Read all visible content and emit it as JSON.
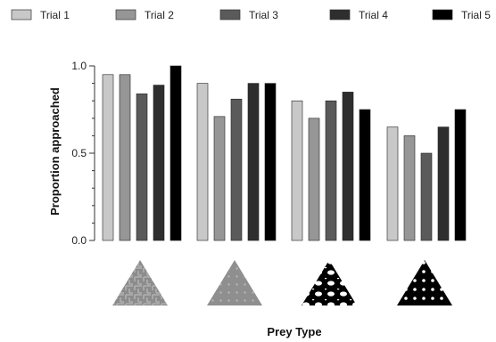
{
  "chart_data": {
    "type": "bar",
    "xlabel": "Prey Type",
    "ylabel": "Proportion approached",
    "ylim": [
      0,
      1.0
    ],
    "yticks": [
      0.0,
      0.5,
      1.0
    ],
    "ytick_labels": [
      "0.0",
      "0.5",
      "1.0"
    ],
    "grid": false,
    "legend_position": "top",
    "categories": [
      "",
      "",
      "",
      ""
    ],
    "category_images": [
      "grey-maze-pattern-triangle",
      "grey-dot-pattern-triangle",
      "black-white-blob-pattern-triangle",
      "black-white-dot-pattern-triangle"
    ],
    "series": [
      {
        "name": "Trial 1",
        "color": "#c8c8c8",
        "values": [
          0.95,
          0.9,
          0.8,
          0.65
        ]
      },
      {
        "name": "Trial 2",
        "color": "#969696",
        "values": [
          0.95,
          0.71,
          0.7,
          0.6
        ]
      },
      {
        "name": "Trial 3",
        "color": "#5a5a5a",
        "values": [
          0.84,
          0.81,
          0.8,
          0.5
        ]
      },
      {
        "name": "Trial 4",
        "color": "#2e2e2e",
        "values": [
          0.89,
          0.9,
          0.85,
          0.65
        ]
      },
      {
        "name": "Trial 5",
        "color": "#000000",
        "values": [
          1.0,
          0.9,
          0.75,
          0.75
        ]
      }
    ]
  }
}
